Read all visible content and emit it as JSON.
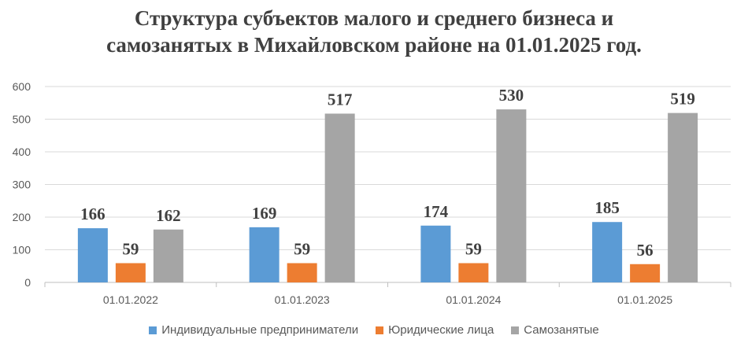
{
  "chart_data": {
    "type": "bar",
    "title_lines": [
      "Структура субъектов малого и среднего бизнеса и",
      "самозанятых в Михайловском районе на 01.01.2025 год."
    ],
    "categories": [
      "01.01.2022",
      "01.01.2023",
      "01.01.2024",
      "01.01.2025"
    ],
    "series": [
      {
        "name": "Индивидуальные предприниматели",
        "values": [
          166,
          169,
          174,
          185
        ],
        "color": "#5B9BD5"
      },
      {
        "name": "Юридические лица",
        "values": [
          59,
          59,
          59,
          56
        ],
        "color": "#ED7D31"
      },
      {
        "name": "Самозанятые",
        "values": [
          162,
          517,
          530,
          519
        ],
        "color": "#A5A5A5"
      }
    ],
    "ylim": [
      0,
      600
    ],
    "yticks": [
      0,
      100,
      200,
      300,
      400,
      500,
      600
    ],
    "grid": true,
    "legend": "bottom",
    "data_labels": true
  }
}
